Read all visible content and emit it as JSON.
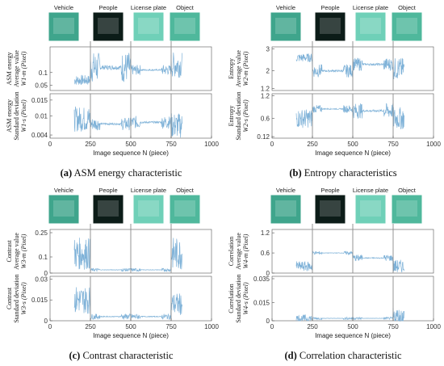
{
  "chart_data": [
    {
      "type": "line",
      "panel_letter": "a",
      "caption": "ASM energy characteristic",
      "category_headers": [
        "Vehicle",
        "People",
        "License plate",
        "Object"
      ],
      "xlabel": "Image sequence N (piece)",
      "xlim": [
        0,
        1000
      ],
      "xticks": [
        "0",
        "250",
        "500",
        "750",
        "1000"
      ],
      "boundaries": [
        250,
        500,
        750
      ],
      "top": {
        "ylabel_line1": "ASM energy",
        "ylabel_line2": "Average value",
        "ylabel_line3": "W1-m (Pixel)",
        "ylim": [
          0.03,
          0.2
        ],
        "yticks": [
          0.05,
          0.1
        ],
        "base_levels": [
          0.07,
          0.12,
          0.11,
          0.13
        ],
        "jitter": [
          0.02,
          0.06,
          0.02,
          0.05
        ]
      },
      "bottom": {
        "ylabel_line1": "ASM energy",
        "ylabel_line2": "Standard deviation",
        "ylabel_line3": "W1-s (Pixel)",
        "ylim": [
          0.003,
          0.017
        ],
        "yticks": [
          0.004,
          0.01,
          0.015
        ],
        "base_levels": [
          0.009,
          0.0075,
          0.008,
          0.007
        ],
        "jitter": [
          0.004,
          0.002,
          0.002,
          0.004
        ]
      }
    },
    {
      "type": "line",
      "panel_letter": "b",
      "caption": "Entropy characteristics",
      "category_headers": [
        "Vehicle",
        "People",
        "License plate",
        "Object"
      ],
      "xlabel": "Image sequence N (piece)",
      "xlim": [
        0,
        1000
      ],
      "xticks": [
        "0",
        "250",
        "500",
        "750",
        "1000"
      ],
      "boundaries": [
        250,
        500,
        750
      ],
      "top": {
        "ylabel_line1": "Entropy",
        "ylabel_line2": "Average value",
        "ylabel_line3": "W2-m (Pixel)",
        "ylim": [
          1.1,
          3.1
        ],
        "yticks": [
          1.2,
          2,
          3
        ],
        "base_levels": [
          2.6,
          2.0,
          2.3,
          2.1
        ],
        "jitter": [
          0.2,
          0.3,
          0.3,
          0.5
        ]
      },
      "bottom": {
        "ylabel_line1": "Entropy",
        "ylabel_line2": "Standard deviation",
        "ylabel_line3": "W2-s (Pixel)",
        "ylim": [
          0.08,
          1.25
        ],
        "yticks": [
          0.12,
          0.6,
          1.2
        ],
        "base_levels": [
          0.6,
          0.85,
          0.8,
          0.6
        ],
        "jitter": [
          0.25,
          0.1,
          0.2,
          0.3
        ]
      }
    },
    {
      "type": "line",
      "panel_letter": "c",
      "caption": "Contrast characteristic",
      "category_headers": [
        "Vehicle",
        "People",
        "License plate",
        "Object"
      ],
      "xlabel": "Image sequence N (piece)",
      "xlim": [
        0,
        1000
      ],
      "xticks": [
        "0",
        "250",
        "500",
        "750",
        "1000"
      ],
      "boundaries": [
        250,
        500,
        750
      ],
      "top": {
        "ylabel_line1": "Contrast",
        "ylabel_line2": "Average value",
        "ylabel_line3": "W3-m (Pixel)",
        "ylim": [
          0,
          0.27
        ],
        "yticks": [
          0,
          0.1,
          0.25
        ],
        "base_levels": [
          0.12,
          0.02,
          0.02,
          0.12
        ],
        "jitter": [
          0.1,
          0.01,
          0.01,
          0.1
        ]
      },
      "bottom": {
        "ylabel_line1": "Contrast",
        "ylabel_line2": "Standard deviation",
        "ylabel_line3": "W3-s (Pixel)",
        "ylim": [
          0,
          0.032
        ],
        "yticks": [
          0,
          0.015,
          0.03
        ],
        "base_levels": [
          0.015,
          0.003,
          0.003,
          0.012
        ],
        "jitter": [
          0.01,
          0.002,
          0.002,
          0.008
        ]
      }
    },
    {
      "type": "line",
      "panel_letter": "d",
      "caption": "Correlation characteristic",
      "category_headers": [
        "Vehicle",
        "People",
        "License plate",
        "Object"
      ],
      "xlabel": "Image sequence N (piece)",
      "xlim": [
        0,
        1000
      ],
      "xticks": [
        "0",
        "250",
        "500",
        "750",
        "1000"
      ],
      "boundaries": [
        250,
        500,
        750
      ],
      "top": {
        "ylabel_line1": "Correlation",
        "ylabel_line2": "Average value",
        "ylabel_line3": "W4-m (Pixel)",
        "ylim": [
          0,
          1.3
        ],
        "yticks": [
          0,
          0.6,
          1.2
        ],
        "base_levels": [
          0.2,
          0.6,
          0.45,
          0.2
        ],
        "jitter": [
          0.15,
          0.05,
          0.1,
          0.2
        ]
      },
      "bottom": {
        "ylabel_line1": "Correlation",
        "ylabel_line2": "Standard deviation",
        "ylabel_line3": "W4-s (Pixel)",
        "ylim": [
          0,
          0.037
        ],
        "yticks": [
          0,
          0.015,
          0.035
        ],
        "base_levels": [
          0.002,
          0.002,
          0.002,
          0.003
        ],
        "jitter": [
          0.003,
          0.001,
          0.001,
          0.008
        ]
      }
    }
  ],
  "colors": {
    "series": "#7fb2d8",
    "divider": "#888888",
    "frame": "#555555",
    "thumb_vehicle": "#3fa58c",
    "thumb_people": "#0c1c18",
    "thumb_plate": "#6fd0b8",
    "thumb_object": "#4fb89c"
  }
}
